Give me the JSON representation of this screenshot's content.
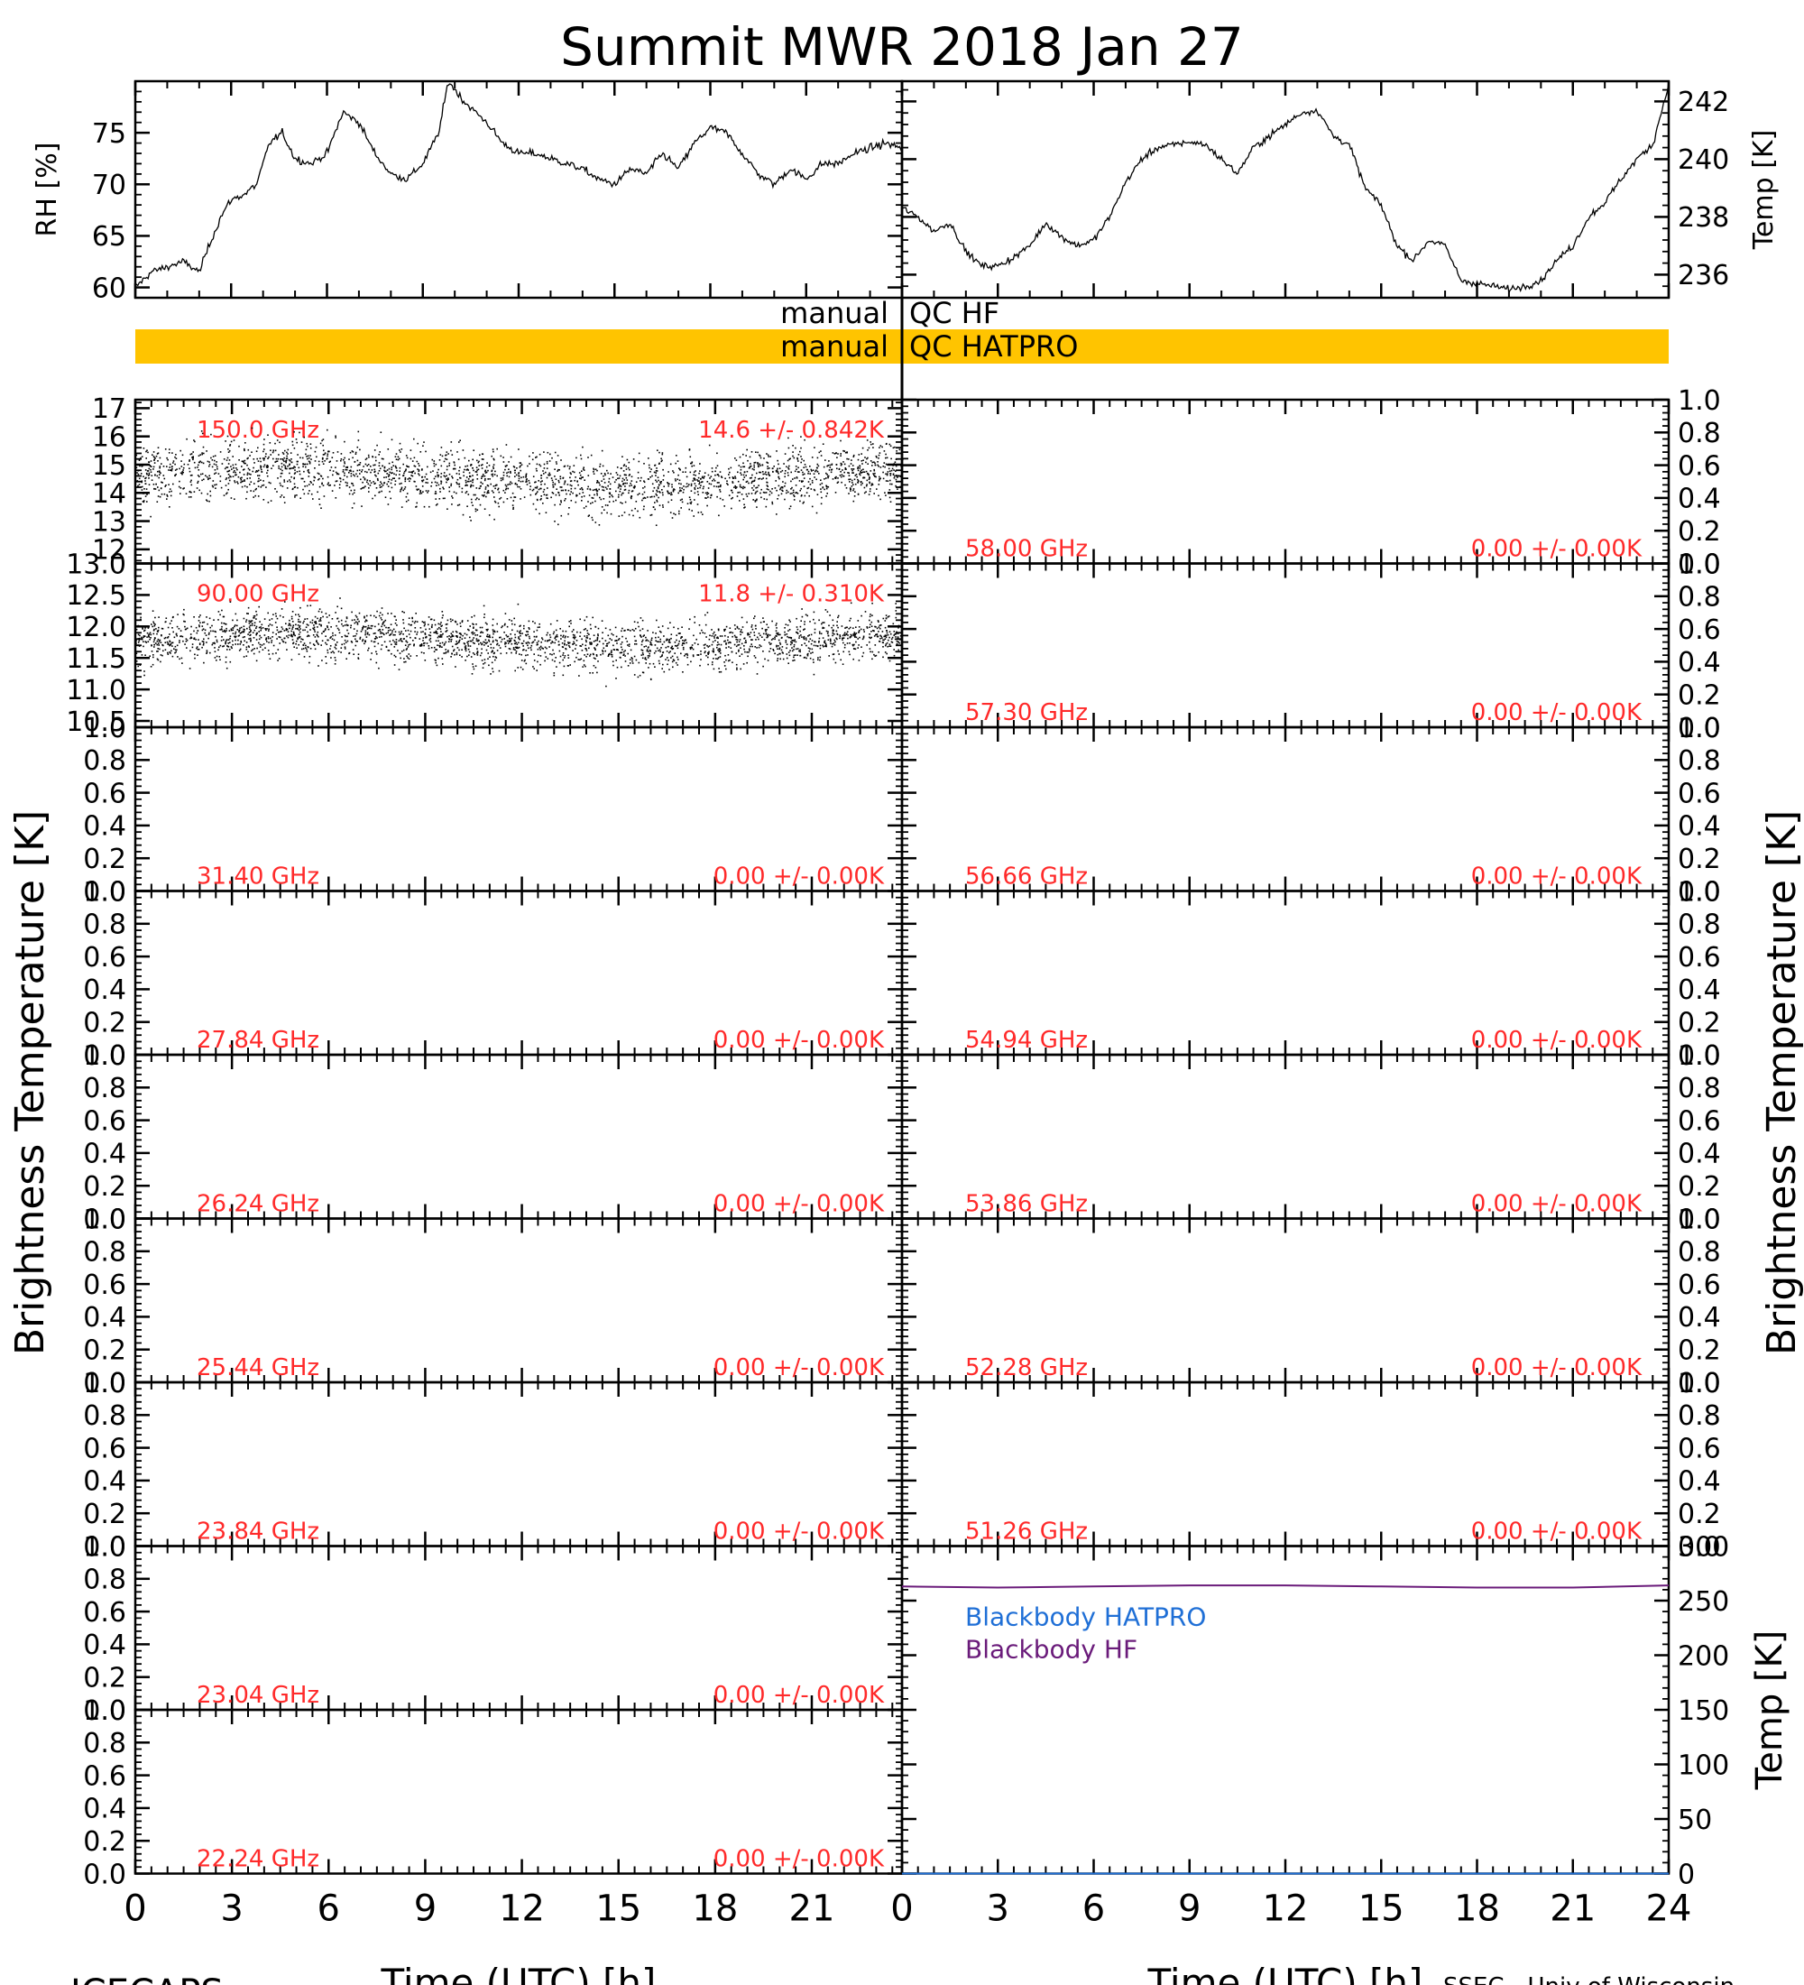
{
  "title": "Summit MWR 2018 Jan 27",
  "footer": {
    "left": "ICECAPS",
    "right": "SSEC - Univ of Wisconsin"
  },
  "colors": {
    "frame": "#000000",
    "annotation": "#ff2a2a",
    "qc_bar": "#ffc400",
    "hatpro_bb": "#1f6fd6",
    "hf_bb": "#6a1b7a"
  },
  "qc": {
    "hf_label": "manual QC HF",
    "hatpro_label": "manual QC HATPRO",
    "hatpro_flagged": true
  },
  "left_ylabel": "Brightness Temperature [K]",
  "right_ylabel": "Brightness Temperature [K]",
  "xlabel": "Time (UTC) [h]",
  "x_ticks": [
    "0",
    "3",
    "6",
    "9",
    "12",
    "15",
    "18",
    "21"
  ],
  "x_ticks_right": [
    "0",
    "3",
    "6",
    "9",
    "12",
    "15",
    "18",
    "21",
    "24"
  ],
  "chart_data": [
    {
      "type": "line",
      "panel": "RH",
      "ylabel": "RH [%]",
      "ylim": [
        59,
        80
      ],
      "yticks": [
        60,
        65,
        70,
        75
      ],
      "xlim": [
        0,
        24
      ],
      "x": [
        0,
        0.5,
        1,
        1.5,
        2,
        2.3,
        2.7,
        3,
        3.4,
        3.8,
        4.2,
        4.6,
        5,
        5.5,
        6,
        6.5,
        7,
        7.5,
        8,
        8.5,
        9,
        9.5,
        9.8,
        10.3,
        11,
        11.5,
        12,
        12.5,
        13,
        13.5,
        14,
        14.5,
        15,
        15.5,
        16,
        16.5,
        17,
        17.5,
        18,
        18.5,
        19,
        19.5,
        20,
        20.5,
        21,
        21.5,
        22,
        22.5,
        23,
        23.5,
        24
      ],
      "y": [
        60,
        61.5,
        62,
        62.5,
        61.5,
        64,
        67,
        68.5,
        69,
        70,
        74,
        75,
        72.5,
        72,
        73,
        77,
        76,
        73,
        71,
        70.5,
        72,
        75,
        80,
        78,
        76,
        74,
        73,
        73,
        72.5,
        72,
        71.5,
        70.5,
        70,
        71.5,
        71,
        73,
        71.5,
        74,
        75.5,
        75,
        73,
        71,
        70,
        71.5,
        70.5,
        72,
        72,
        73,
        73.5,
        74,
        73.5
      ]
    },
    {
      "type": "line",
      "panel": "Temp",
      "ylabel": "Temp [K]",
      "ylim": [
        235.2,
        242.7
      ],
      "yticks": [
        236,
        238,
        240,
        242
      ],
      "xlim": [
        0,
        24
      ],
      "x": [
        0,
        0.5,
        1,
        1.5,
        2,
        2.5,
        3,
        3.5,
        4,
        4.5,
        5,
        5.5,
        6,
        6.5,
        7,
        7.5,
        8,
        8.5,
        9,
        9.5,
        10,
        10.5,
        11,
        11.5,
        12,
        12.5,
        13,
        13.5,
        14,
        14.5,
        15,
        15.5,
        16,
        16.5,
        17,
        17.5,
        18,
        18.5,
        19,
        19.5,
        20,
        20.5,
        21,
        21.5,
        22,
        22.5,
        23,
        23.5,
        24
      ],
      "y": [
        238.3,
        238,
        237.5,
        237.8,
        236.8,
        236.3,
        236.3,
        236.6,
        237,
        237.8,
        237.3,
        237,
        237.2,
        238,
        239.2,
        240,
        240.4,
        240.5,
        240.6,
        240.5,
        240,
        239.5,
        240.4,
        240.8,
        241.2,
        241.6,
        241.7,
        240.8,
        240.5,
        239,
        238.4,
        237,
        236.5,
        237.2,
        237,
        235.8,
        235.7,
        235.6,
        235.5,
        235.6,
        235.8,
        236.5,
        237,
        238,
        238.5,
        239.3,
        240,
        240.5,
        242.6
      ]
    },
    {
      "type": "scatter",
      "panel": "150.0 GHz",
      "side": "left",
      "label": "150.0 GHz",
      "stat": "14.6 +/- 0.842K",
      "ylim": [
        11.5,
        17.3
      ],
      "yticks": [
        12,
        13,
        14,
        15,
        16,
        17
      ],
      "mean": 14.6,
      "std": 0.842,
      "xlim": [
        0,
        23.8
      ]
    },
    {
      "type": "scatter",
      "panel": "90.00 GHz",
      "side": "left",
      "label": "90.00 GHz",
      "stat": "11.8 +/- 0.310K",
      "ylim": [
        10.4,
        13.0
      ],
      "yticks": [
        10.5,
        11.0,
        11.5,
        12.0,
        12.5,
        13.0
      ],
      "mean": 11.8,
      "std": 0.31,
      "xlim": [
        0,
        23.8
      ]
    },
    {
      "type": "scatter",
      "panel": "31.40 GHz",
      "side": "left",
      "label": "31.40 GHz",
      "stat": "0.00 +/- 0.00K",
      "ylim": [
        0,
        1
      ],
      "yticks": [
        0.0,
        0.2,
        0.4,
        0.6,
        0.8,
        1.0
      ],
      "values": []
    },
    {
      "type": "scatter",
      "panel": "27.84 GHz",
      "side": "left",
      "label": "27.84 GHz",
      "stat": "0.00 +/- 0.00K",
      "ylim": [
        0,
        1
      ],
      "yticks": [
        0.0,
        0.2,
        0.4,
        0.6,
        0.8,
        1.0
      ],
      "values": []
    },
    {
      "type": "scatter",
      "panel": "26.24 GHz",
      "side": "left",
      "label": "26.24 GHz",
      "stat": "0.00 +/- 0.00K",
      "ylim": [
        0,
        1
      ],
      "yticks": [
        0.0,
        0.2,
        0.4,
        0.6,
        0.8,
        1.0
      ],
      "values": []
    },
    {
      "type": "scatter",
      "panel": "25.44 GHz",
      "side": "left",
      "label": "25.44 GHz",
      "stat": "0.00 +/- 0.00K",
      "ylim": [
        0,
        1
      ],
      "yticks": [
        0.0,
        0.2,
        0.4,
        0.6,
        0.8,
        1.0
      ],
      "values": []
    },
    {
      "type": "scatter",
      "panel": "23.84 GHz",
      "side": "left",
      "label": "23.84 GHz",
      "stat": "0.00 +/- 0.00K",
      "ylim": [
        0,
        1
      ],
      "yticks": [
        0.0,
        0.2,
        0.4,
        0.6,
        0.8,
        1.0
      ],
      "values": []
    },
    {
      "type": "scatter",
      "panel": "23.04 GHz",
      "side": "left",
      "label": "23.04 GHz",
      "stat": "0.00 +/- 0.00K",
      "ylim": [
        0,
        1
      ],
      "yticks": [
        0.0,
        0.2,
        0.4,
        0.6,
        0.8,
        1.0
      ],
      "values": []
    },
    {
      "type": "scatter",
      "panel": "22.24 GHz",
      "side": "left",
      "label": "22.24 GHz",
      "stat": "0.00 +/- 0.00K",
      "ylim": [
        0,
        1
      ],
      "yticks": [
        0.0,
        0.2,
        0.4,
        0.6,
        0.8,
        1.0
      ],
      "values": []
    },
    {
      "type": "scatter",
      "panel": "58.00 GHz",
      "side": "right",
      "label": "58.00 GHz",
      "stat": "0.00 +/- 0.00K",
      "ylim": [
        0,
        1
      ],
      "yticks": [
        0.0,
        0.2,
        0.4,
        0.6,
        0.8,
        1.0
      ],
      "values": []
    },
    {
      "type": "scatter",
      "panel": "57.30 GHz",
      "side": "right",
      "label": "57.30 GHz",
      "stat": "0.00 +/- 0.00K",
      "ylim": [
        0,
        1
      ],
      "yticks": [
        0.0,
        0.2,
        0.4,
        0.6,
        0.8,
        1.0
      ],
      "values": []
    },
    {
      "type": "scatter",
      "panel": "56.66 GHz",
      "side": "right",
      "label": "56.66 GHz",
      "stat": "0.00 +/- 0.00K",
      "ylim": [
        0,
        1
      ],
      "yticks": [
        0.0,
        0.2,
        0.4,
        0.6,
        0.8,
        1.0
      ],
      "values": []
    },
    {
      "type": "scatter",
      "panel": "54.94 GHz",
      "side": "right",
      "label": "54.94 GHz",
      "stat": "0.00 +/- 0.00K",
      "ylim": [
        0,
        1
      ],
      "yticks": [
        0.0,
        0.2,
        0.4,
        0.6,
        0.8,
        1.0
      ],
      "values": []
    },
    {
      "type": "scatter",
      "panel": "53.86 GHz",
      "side": "right",
      "label": "53.86 GHz",
      "stat": "0.00 +/- 0.00K",
      "ylim": [
        0,
        1
      ],
      "yticks": [
        0.0,
        0.2,
        0.4,
        0.6,
        0.8,
        1.0
      ],
      "values": []
    },
    {
      "type": "scatter",
      "panel": "52.28 GHz",
      "side": "right",
      "label": "52.28 GHz",
      "stat": "0.00 +/- 0.00K",
      "ylim": [
        0,
        1
      ],
      "yticks": [
        0.0,
        0.2,
        0.4,
        0.6,
        0.8,
        1.0
      ],
      "values": []
    },
    {
      "type": "scatter",
      "panel": "51.26 GHz",
      "side": "right",
      "label": "51.26 GHz",
      "stat": "0.00 +/- 0.00K",
      "ylim": [
        0,
        1
      ],
      "yticks": [
        0.0,
        0.2,
        0.4,
        0.6,
        0.8,
        1.0
      ],
      "values": []
    },
    {
      "type": "line",
      "panel": "Blackbody",
      "ylabel": "Temp [K]",
      "ylim": [
        0,
        300
      ],
      "yticks": [
        0,
        50,
        100,
        150,
        200,
        250,
        300
      ],
      "xlim": [
        0,
        24
      ],
      "series": [
        {
          "name": "Blackbody HATPRO",
          "x": [
            0,
            24
          ],
          "y": [
            0,
            0
          ]
        },
        {
          "name": "Blackbody HF",
          "x": [
            0,
            3,
            6,
            9,
            12,
            15,
            18,
            21,
            24
          ],
          "y": [
            263,
            262,
            263,
            264,
            264,
            263,
            262,
            262,
            264
          ]
        }
      ]
    }
  ]
}
